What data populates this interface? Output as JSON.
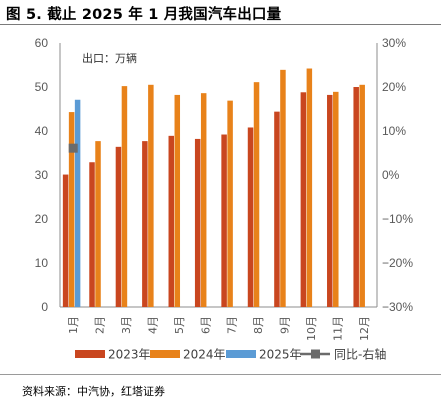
{
  "figure": {
    "title": "图 5. 截止 2025 年 1 月我国汽车出口量",
    "unit_note": "出口：万辆",
    "source": "资料来源：中汽协，红塔证券"
  },
  "colors": {
    "y2023": "#c9461f",
    "y2024": "#e8821a",
    "y2025": "#5b9bd5",
    "yoy": "#6b6b6b"
  },
  "chart_data": {
    "type": "bar",
    "categories": [
      "1月",
      "2月",
      "3月",
      "4月",
      "5月",
      "6月",
      "7月",
      "8月",
      "9月",
      "10月",
      "11月",
      "12月"
    ],
    "series": [
      {
        "name": "2023年",
        "type": "bar",
        "axis": "left",
        "values": [
          30.1,
          32.9,
          36.4,
          37.7,
          38.9,
          38.2,
          39.2,
          40.8,
          44.4,
          48.8,
          48.2,
          50.0
        ]
      },
      {
        "name": "2024年",
        "type": "bar",
        "axis": "left",
        "values": [
          44.3,
          37.7,
          50.2,
          50.5,
          48.2,
          48.6,
          46.9,
          51.1,
          53.9,
          54.2,
          48.9,
          50.5
        ]
      },
      {
        "name": "2025年",
        "type": "bar",
        "axis": "left",
        "values": [
          47.1,
          null,
          null,
          null,
          null,
          null,
          null,
          null,
          null,
          null,
          null,
          null
        ]
      },
      {
        "name": "同比-右轴",
        "type": "line",
        "axis": "right",
        "values": [
          6.1,
          null,
          null,
          null,
          null,
          null,
          null,
          null,
          null,
          null,
          null,
          null
        ]
      }
    ],
    "ylim": [
      0,
      60
    ],
    "yticks": [
      "0",
      "10",
      "20",
      "30",
      "40",
      "50",
      "60"
    ],
    "y2lim": [
      -30,
      30
    ],
    "y2ticks": [
      "−30%",
      "−20%",
      "−10%",
      "0%",
      "10%",
      "20%",
      "30%"
    ],
    "grid": false,
    "legend_position": "bottom"
  }
}
